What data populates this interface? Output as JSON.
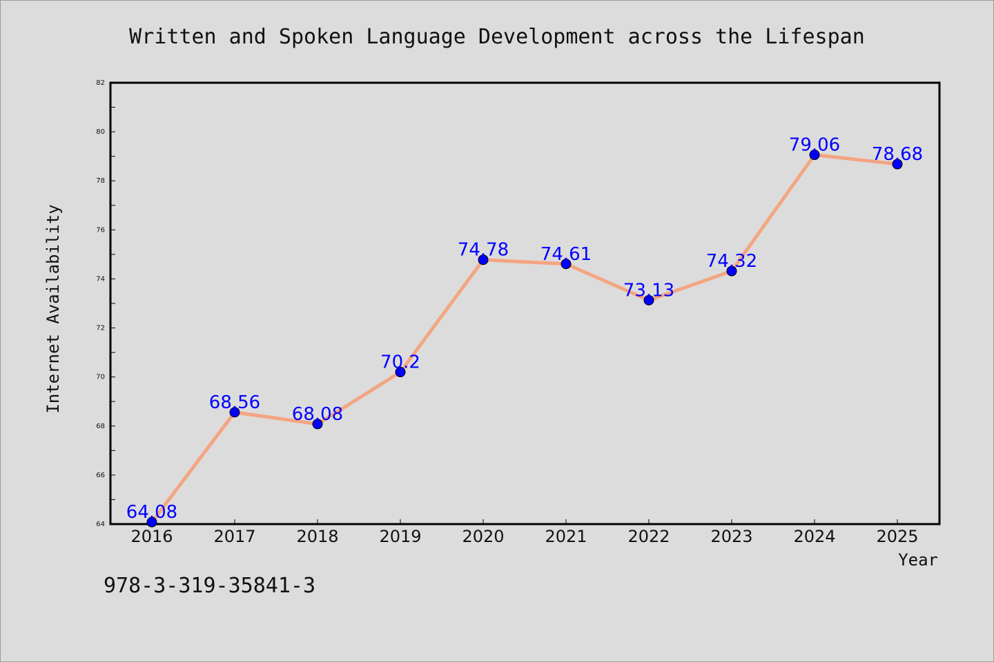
{
  "chart_data": {
    "type": "line",
    "title": "Written and Spoken Language Development across the Lifespan",
    "xlabel": "Year",
    "ylabel": "Internet Availability",
    "categories": [
      "2016",
      "2017",
      "2018",
      "2019",
      "2020",
      "2021",
      "2022",
      "2023",
      "2024",
      "2025"
    ],
    "series": [
      {
        "values": [
          64.08,
          68.56,
          68.08,
          70.2,
          74.78,
          74.61,
          73.13,
          74.32,
          79.06,
          78.68
        ],
        "data_labels": [
          "64.08",
          "68.56",
          "68.08",
          "70.2",
          "74.78",
          "74.61",
          "73.13",
          "74.32",
          "79.06",
          "78.68"
        ]
      }
    ],
    "ylim": [
      64,
      82
    ],
    "yticks": [
      "64",
      "66",
      "68",
      "70",
      "72",
      "74",
      "76",
      "78",
      "80",
      "82"
    ],
    "grid": false,
    "colors": {
      "line": "#f4a582",
      "marker": "#0000ff",
      "label": "#0000ff",
      "background": "#dcdcdc"
    }
  },
  "footer_code": "978-3-319-35841-3"
}
